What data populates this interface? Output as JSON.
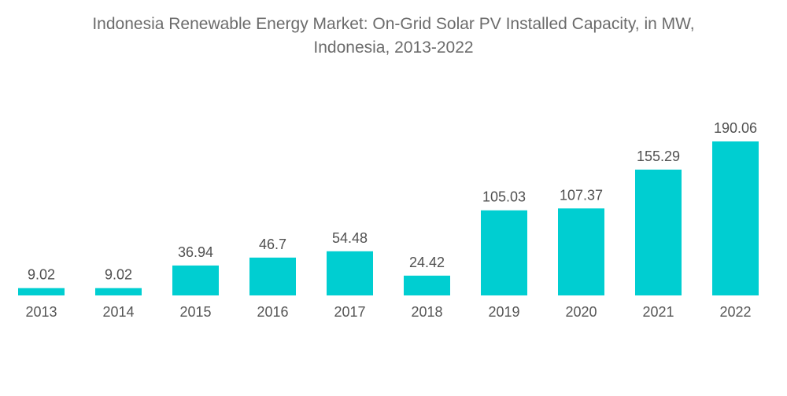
{
  "chart_data": {
    "type": "bar",
    "title": "Indonesia Renewable Energy Market: On-Grid Solar PV Installed Capacity, in MW,",
    "subtitle": "Indonesia, 2013-2022",
    "xlabel": "",
    "ylabel": "",
    "categories": [
      "2013",
      "2014",
      "2015",
      "2016",
      "2017",
      "2018",
      "2019",
      "2020",
      "2021",
      "2022"
    ],
    "values": [
      9.02,
      9.02,
      36.94,
      46.7,
      54.48,
      24.42,
      105.03,
      107.37,
      155.29,
      190.06
    ],
    "value_labels": [
      "9.02",
      "9.02",
      "36.94",
      "46.7",
      "54.48",
      "24.42",
      "105.03",
      "107.37",
      "155.29",
      "190.06"
    ],
    "ylim": [
      0,
      190.06
    ],
    "grid": false,
    "legend": "none",
    "bar_color": "#00CED1"
  }
}
